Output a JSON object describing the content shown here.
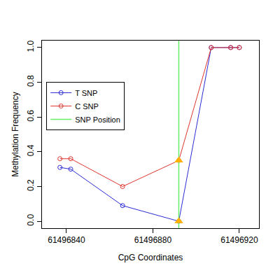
{
  "chart_data": {
    "type": "line",
    "x_label": "CpG Coordinates",
    "y_label": "Methylation Frequency",
    "x": [
      61496837,
      61496842,
      61496866,
      61496892,
      61496907,
      61496916,
      61496920
    ],
    "series": [
      {
        "name": "T SNP",
        "color": "#2b2bd6",
        "marker": "circle-open",
        "values": [
          0.31,
          0.3,
          0.09,
          0.0,
          1.0,
          1.0,
          1.0
        ]
      },
      {
        "name": "C SNP",
        "color": "#e0342e",
        "marker": "circle-open",
        "values": [
          0.36,
          0.36,
          0.2,
          0.35,
          1.0,
          1.0,
          1.0
        ]
      }
    ],
    "snp": {
      "name": "SNP Position",
      "color": "#66ee66",
      "x": 61496892,
      "marker": "triangle-up"
    },
    "xlim": [
      61496828.7,
      61496929.1
    ],
    "xticks": [
      61496840,
      61496880,
      61496920
    ],
    "ylim": [
      -0.04,
      1.04
    ],
    "yticks": [
      {
        "value": 0,
        "label": "0.0"
      },
      {
        "value": 0.2,
        "label": "0.2"
      },
      {
        "value": 0.4,
        "label": "0.4"
      },
      {
        "value": 0.6,
        "label": "0.6"
      },
      {
        "value": 0.8,
        "label": "0.8"
      },
      {
        "value": 1,
        "label": "1.0"
      }
    ],
    "grid": false,
    "legend": "left"
  }
}
